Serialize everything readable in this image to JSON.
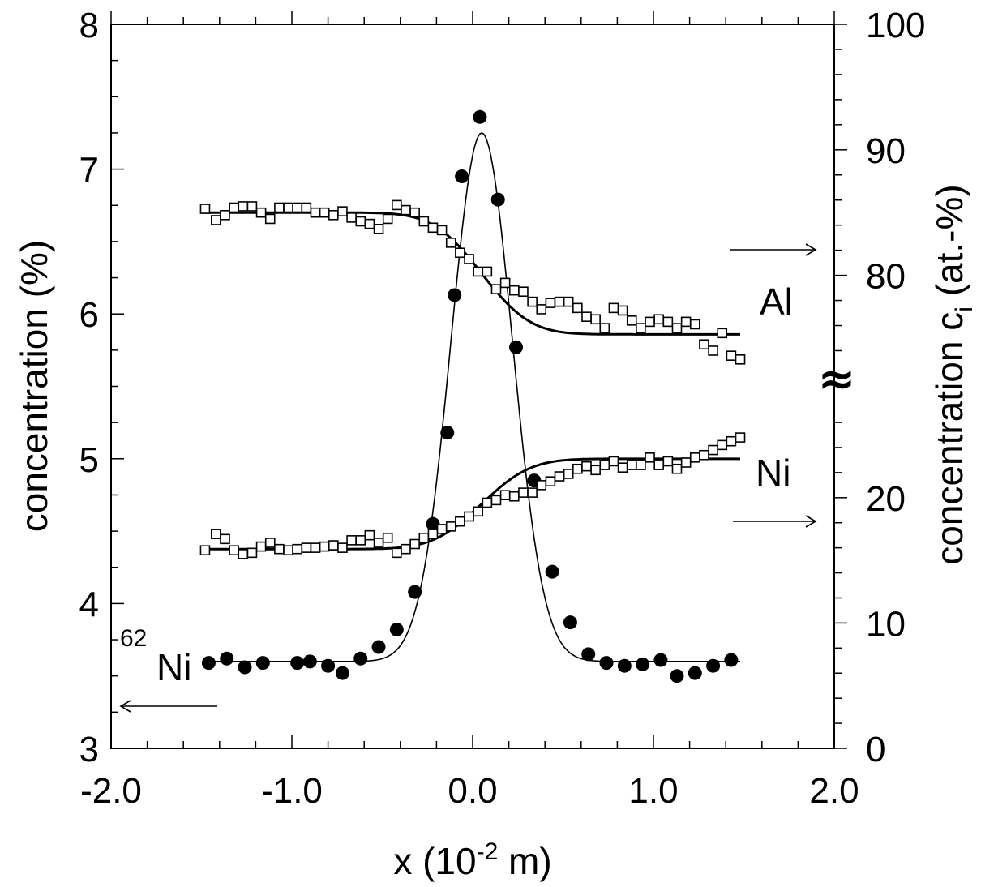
{
  "chart_data": {
    "type": "scatter",
    "xlabel": "x (10-2 m)",
    "xlabel_main": "x (10",
    "xlabel_exp": "-2",
    "xlabel_tail": " m)",
    "ylabel_left": "concentration (%)",
    "ylabel_right_main": "concentration c",
    "ylabel_right_sub": "i",
    "ylabel_right_tail": " (at.-%)",
    "xlim": [
      -2.0,
      2.0
    ],
    "ylim_left": [
      3,
      8
    ],
    "ylim_right": [
      0,
      100
    ],
    "right_axis_break": true,
    "right_axis_break_symbol": "≈",
    "x_ticks": [
      "-2.0",
      "-1.0",
      "0.0",
      "1.0",
      "2.0"
    ],
    "y_left_ticks": [
      "3",
      "4",
      "5",
      "6",
      "7",
      "8"
    ],
    "y_right_ticks": [
      "0",
      "10",
      "20",
      "80",
      "90",
      "100"
    ],
    "labels": {
      "ni62_sup": "62",
      "ni62_main": "Ni",
      "al": "Al",
      "ni": "Ni"
    },
    "series": [
      {
        "name": "62Ni",
        "axis": "left",
        "marker": "filled-circle",
        "x": [
          -1.46,
          -1.36,
          -1.26,
          -1.16,
          -0.97,
          -0.9,
          -0.8,
          -0.72,
          -0.62,
          -0.52,
          -0.42,
          -0.32,
          -0.22,
          -0.14,
          -0.1,
          -0.06,
          0.04,
          0.14,
          0.24,
          0.34,
          0.44,
          0.54,
          0.64,
          0.74,
          0.84,
          0.94,
          1.04,
          1.13,
          1.23,
          1.33,
          1.43
        ],
        "y": [
          3.59,
          3.62,
          3.56,
          3.59,
          3.59,
          3.6,
          3.57,
          3.52,
          3.62,
          3.7,
          3.82,
          4.08,
          4.55,
          5.18,
          6.13,
          6.95,
          7.36,
          6.79,
          5.77,
          4.85,
          4.22,
          3.87,
          3.65,
          3.59,
          3.57,
          3.58,
          3.61,
          3.5,
          3.52,
          3.57,
          3.61
        ]
      },
      {
        "name": "62Ni fit",
        "axis": "left",
        "marker": "line",
        "baseline": 3.6,
        "peak": 7.25,
        "center": 0.05,
        "width": 0.17
      },
      {
        "name": "Al",
        "axis": "right",
        "marker": "open-square",
        "x": [
          -1.48,
          -1.42,
          -1.37,
          -1.32,
          -1.27,
          -1.22,
          -1.17,
          -1.12,
          -1.07,
          -1.02,
          -0.97,
          -0.92,
          -0.87,
          -0.82,
          -0.77,
          -0.72,
          -0.67,
          -0.62,
          -0.57,
          -0.52,
          -0.47,
          -0.42,
          -0.37,
          -0.32,
          -0.27,
          -0.22,
          -0.17,
          -0.12,
          -0.07,
          -0.02,
          0.03,
          0.08,
          0.13,
          0.18,
          0.23,
          0.28,
          0.33,
          0.38,
          0.43,
          0.48,
          0.53,
          0.58,
          0.63,
          0.68,
          0.73,
          0.78,
          0.83,
          0.88,
          0.93,
          0.98,
          1.03,
          1.08,
          1.13,
          1.18,
          1.23,
          1.28,
          1.33,
          1.38,
          1.43,
          1.48
        ],
        "y": [
          85.3,
          84.4,
          84.8,
          85.4,
          85.5,
          85.5,
          85.0,
          84.5,
          85.4,
          85.4,
          85.4,
          85.4,
          85.0,
          85.0,
          84.8,
          85.1,
          84.6,
          84.3,
          84.1,
          83.7,
          84.5,
          85.6,
          85.2,
          85.0,
          84.3,
          83.8,
          83.6,
          82.6,
          81.8,
          81.3,
          80.3,
          80.3,
          78.9,
          79.4,
          78.8,
          78.7,
          77.9,
          77.3,
          77.8,
          77.9,
          77.9,
          77.4,
          76.7,
          76.5,
          75.8,
          77.4,
          77.2,
          76.4,
          75.8,
          76.3,
          76.5,
          76.3,
          75.8,
          76.3,
          76.1,
          74.5,
          74.0,
          75.4,
          73.6,
          73.3
        ]
      },
      {
        "name": "Al fit",
        "axis": "right",
        "marker": "line",
        "from": 85.0,
        "to": 75.3,
        "center": 0.05,
        "width": 0.3
      },
      {
        "name": "Ni",
        "axis": "right",
        "marker": "open-square",
        "x": [
          -1.48,
          -1.42,
          -1.37,
          -1.32,
          -1.27,
          -1.22,
          -1.17,
          -1.12,
          -1.07,
          -1.02,
          -0.97,
          -0.92,
          -0.87,
          -0.82,
          -0.77,
          -0.72,
          -0.67,
          -0.62,
          -0.57,
          -0.52,
          -0.47,
          -0.42,
          -0.37,
          -0.32,
          -0.27,
          -0.22,
          -0.17,
          -0.12,
          -0.07,
          -0.02,
          0.03,
          0.08,
          0.13,
          0.18,
          0.23,
          0.28,
          0.33,
          0.38,
          0.43,
          0.48,
          0.53,
          0.58,
          0.63,
          0.68,
          0.73,
          0.78,
          0.83,
          0.88,
          0.93,
          0.98,
          1.03,
          1.08,
          1.13,
          1.18,
          1.23,
          1.28,
          1.33,
          1.38,
          1.43,
          1.48
        ],
        "y": [
          15.8,
          17.1,
          16.7,
          15.8,
          15.5,
          15.6,
          16.1,
          16.4,
          15.9,
          15.8,
          15.9,
          16.0,
          16.0,
          16.1,
          16.2,
          16.0,
          16.6,
          16.6,
          17.0,
          16.4,
          16.8,
          15.6,
          15.9,
          16.3,
          16.8,
          17.1,
          17.5,
          17.7,
          18.1,
          18.5,
          18.9,
          19.6,
          19.8,
          20.2,
          20.1,
          20.4,
          20.4,
          21.0,
          21.3,
          21.7,
          21.9,
          22.3,
          22.5,
          22.2,
          22.6,
          22.9,
          22.4,
          22.6,
          22.6,
          23.2,
          22.6,
          22.9,
          22.3,
          22.8,
          23.2,
          23.4,
          23.8,
          24.2,
          24.5,
          24.8
        ]
      },
      {
        "name": "Ni fit",
        "axis": "right",
        "marker": "line",
        "from": 15.9,
        "to": 23.1,
        "center": 0.05,
        "width": 0.3
      }
    ]
  }
}
